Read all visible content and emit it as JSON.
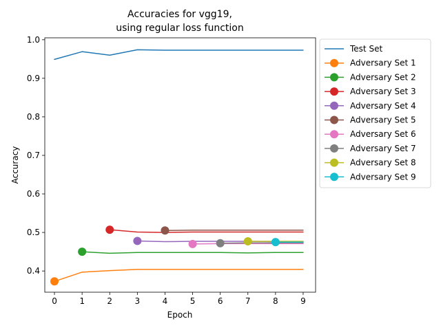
{
  "chart_data": {
    "type": "line",
    "title_lines": [
      "Accuracies for vgg19,",
      "using regular loss function"
    ],
    "xlabel": "Epoch",
    "ylabel": "Accuracy",
    "xlim": [
      -0.35,
      9.45
    ],
    "ylim": [
      0.345,
      1.005
    ],
    "x_ticks": [
      0,
      1,
      2,
      3,
      4,
      5,
      6,
      7,
      8,
      9
    ],
    "y_ticks": [
      0.4,
      0.5,
      0.6,
      0.7,
      0.8,
      0.9,
      1.0
    ],
    "y_tick_labels": [
      "0.4",
      "0.5",
      "0.6",
      "0.7",
      "0.8",
      "0.9",
      "1.0"
    ],
    "grid": false,
    "legend_position": "outside-right-top",
    "series": [
      {
        "name": "Test Set",
        "color": "#1f77b4",
        "marker": "none",
        "x": [
          0,
          1,
          2,
          3,
          4,
          5,
          6,
          7,
          8,
          9
        ],
        "y": [
          0.949,
          0.969,
          0.96,
          0.974,
          0.973,
          0.973,
          0.973,
          0.973,
          0.973,
          0.973
        ]
      },
      {
        "name": "Adversary Set 1",
        "color": "#ff7f0e",
        "marker": "circle",
        "x": [
          0,
          1,
          2,
          3,
          4,
          5,
          6,
          7,
          8,
          9
        ],
        "y": [
          0.373,
          0.397,
          0.401,
          0.404,
          0.404,
          0.404,
          0.404,
          0.404,
          0.404,
          0.404
        ]
      },
      {
        "name": "Adversary Set 2",
        "color": "#2ca02c",
        "marker": "circle",
        "x": [
          1,
          2,
          3,
          4,
          5,
          6,
          7,
          8,
          9
        ],
        "y": [
          0.45,
          0.446,
          0.448,
          0.448,
          0.448,
          0.448,
          0.447,
          0.448,
          0.448
        ]
      },
      {
        "name": "Adversary Set 3",
        "color": "#d62728",
        "marker": "circle",
        "x": [
          2,
          3,
          4,
          5,
          6,
          7,
          8,
          9
        ],
        "y": [
          0.507,
          0.501,
          0.5,
          0.501,
          0.501,
          0.501,
          0.501,
          0.501
        ]
      },
      {
        "name": "Adversary Set 4",
        "color": "#9467bd",
        "marker": "circle",
        "x": [
          3,
          4,
          5,
          6,
          7,
          8,
          9
        ],
        "y": [
          0.478,
          0.476,
          0.477,
          0.477,
          0.477,
          0.476,
          0.476
        ]
      },
      {
        "name": "Adversary Set 5",
        "color": "#8c564b",
        "marker": "circle",
        "x": [
          4,
          5,
          6,
          7,
          8,
          9
        ],
        "y": [
          0.505,
          0.506,
          0.506,
          0.506,
          0.506,
          0.506
        ]
      },
      {
        "name": "Adversary Set 6",
        "color": "#e377c2",
        "marker": "circle",
        "x": [
          5,
          6,
          7,
          8,
          9
        ],
        "y": [
          0.47,
          0.471,
          0.471,
          0.471,
          0.471
        ]
      },
      {
        "name": "Adversary Set 7",
        "color": "#7f7f7f",
        "marker": "circle",
        "x": [
          6,
          7,
          8,
          9
        ],
        "y": [
          0.472,
          0.473,
          0.473,
          0.473
        ]
      },
      {
        "name": "Adversary Set 8",
        "color": "#bcbd22",
        "marker": "circle",
        "x": [
          7,
          8,
          9
        ],
        "y": [
          0.477,
          0.477,
          0.477
        ]
      },
      {
        "name": "Adversary Set 9",
        "color": "#17becf",
        "marker": "circle",
        "x": [
          8,
          9
        ],
        "y": [
          0.475,
          0.475
        ]
      }
    ]
  }
}
